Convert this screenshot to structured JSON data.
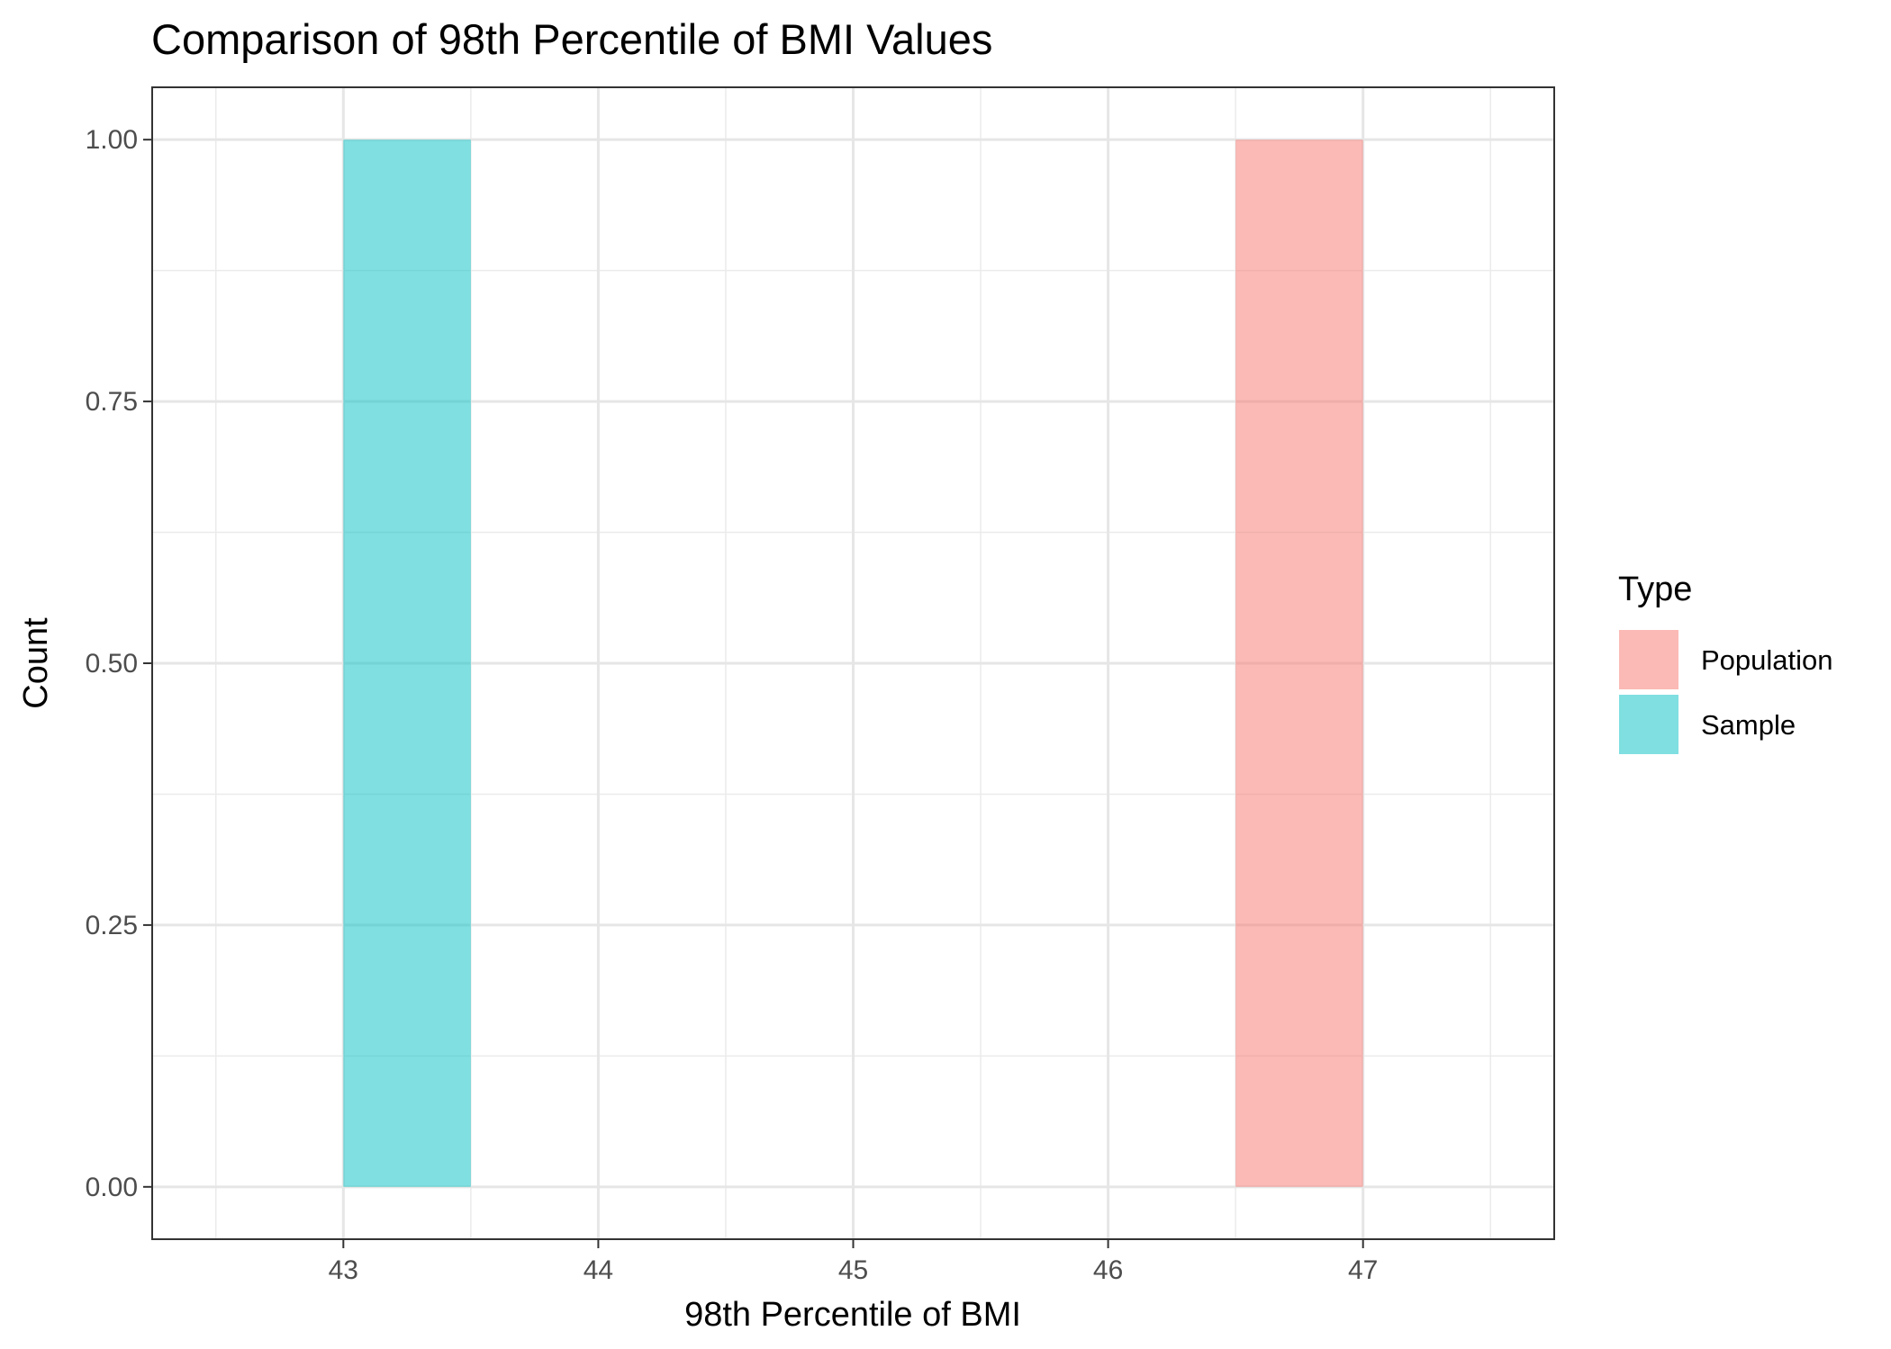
{
  "chart_data": {
    "type": "bar",
    "title": "Comparison of 98th Percentile of BMI Values",
    "xlabel": "98th Percentile of BMI",
    "ylabel": "Count",
    "xlim": [
      42.25,
      47.75
    ],
    "ylim": [
      -0.05,
      1.05
    ],
    "x_ticks": [
      43,
      44,
      45,
      46,
      47
    ],
    "x_tick_labels": [
      "43",
      "44",
      "45",
      "46",
      "47"
    ],
    "y_ticks": [
      0,
      0.25,
      0.5,
      0.75,
      1
    ],
    "y_tick_labels": [
      "0.00",
      "0.25",
      "0.50",
      "0.75",
      "1.00"
    ],
    "grid": true,
    "legend": {
      "title": "Type",
      "position": "right",
      "entries": [
        {
          "label": "Population",
          "color": "#F8766D"
        },
        {
          "label": "Sample",
          "color": "#00BFC4"
        }
      ]
    },
    "series": [
      {
        "name": "Population",
        "color": "#F8766D",
        "bins": [
          {
            "x_start": 46.5,
            "x_end": 47.0,
            "count": 1
          }
        ]
      },
      {
        "name": "Sample",
        "color": "#00BFC4",
        "bins": [
          {
            "x_start": 43.0,
            "x_end": 43.5,
            "count": 1
          }
        ]
      }
    ]
  }
}
